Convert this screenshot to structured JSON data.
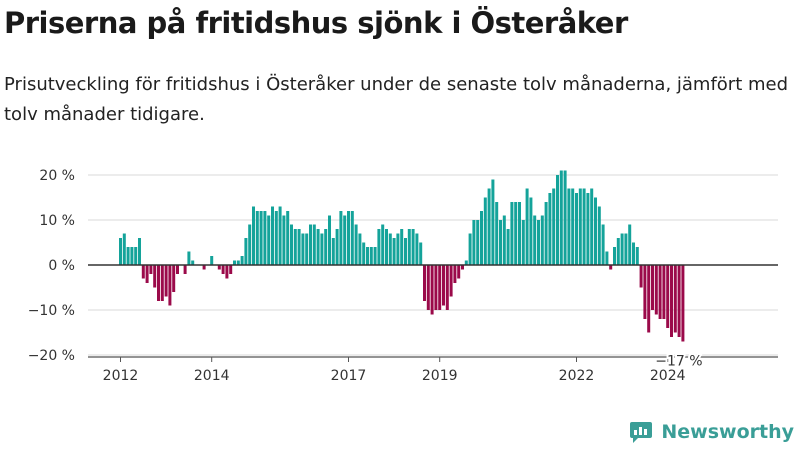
{
  "title": "Priserna på fritidshus sjönk i Österåker",
  "subtitle": "Prisutveckling för fritidshus i Österåker under de senaste tolv månaderna, jämfört med tolv månader tidigare.",
  "brand": {
    "name": "Newsworthy",
    "icon": "newsworthy-logo-icon"
  },
  "colors": {
    "positive": "#14a39a",
    "negative": "#9b0a4a",
    "grid": "#d9d9d9",
    "zero": "#333333"
  },
  "chart_data": {
    "type": "bar",
    "title": "",
    "xlabel": "",
    "ylabel": "",
    "ylim": [
      -20,
      20
    ],
    "grid": true,
    "y_ticks": [
      {
        "value": 20,
        "label": "20 %"
      },
      {
        "value": 10,
        "label": "10 %"
      },
      {
        "value": 0,
        "label": "0 %"
      },
      {
        "value": -10,
        "label": "−10 %"
      },
      {
        "value": -20,
        "label": "−20 %"
      }
    ],
    "x_ticks": [
      {
        "year": 2012,
        "label": "2012"
      },
      {
        "year": 2014,
        "label": "2014"
      },
      {
        "year": 2017,
        "label": "2017"
      },
      {
        "year": 2019,
        "label": "2019"
      },
      {
        "year": 2022,
        "label": "2022"
      },
      {
        "year": 2024,
        "label": "2024"
      }
    ],
    "start_month": "2012-01",
    "end_month": "2024-05",
    "last_value_label": "−17 %",
    "values": [
      6,
      7,
      4,
      4,
      4,
      6,
      -3,
      -4,
      -2,
      -5,
      -8,
      -8,
      -7,
      -9,
      -6,
      -2,
      0,
      -2,
      3,
      1,
      0,
      0,
      -1,
      0,
      2,
      0,
      -1,
      -2,
      -3,
      -2,
      1,
      1,
      2,
      6,
      9,
      13,
      12,
      12,
      12,
      11,
      13,
      12,
      13,
      11,
      12,
      9,
      8,
      8,
      7,
      7,
      9,
      9,
      8,
      7,
      8,
      11,
      6,
      8,
      12,
      11,
      12,
      12,
      9,
      7,
      5,
      4,
      4,
      4,
      8,
      9,
      8,
      7,
      6,
      7,
      8,
      6,
      8,
      8,
      7,
      5,
      -8,
      -10,
      -11,
      -10,
      -10,
      -9,
      -10,
      -7,
      -4,
      -3,
      -1,
      1,
      7,
      10,
      10,
      12,
      15,
      17,
      19,
      14,
      10,
      11,
      8,
      14,
      14,
      14,
      10,
      17,
      15,
      11,
      10,
      11,
      14,
      16,
      17,
      20,
      21,
      21,
      17,
      17,
      16,
      17,
      17,
      16,
      17,
      15,
      13,
      9,
      3,
      -1,
      4,
      6,
      7,
      7,
      9,
      5,
      4,
      -5,
      -12,
      -15,
      -10,
      -11,
      -12,
      -12,
      -14,
      -16,
      -15,
      -16,
      -17
    ]
  }
}
